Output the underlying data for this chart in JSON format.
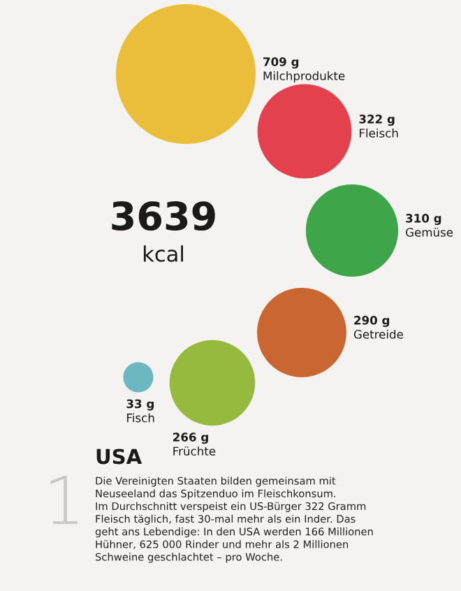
{
  "chart_data": {
    "type": "other",
    "title": "USA",
    "categories": [
      "Milchprodukte",
      "Fleisch",
      "Gemüse",
      "Getreide",
      "Früchte",
      "Fisch"
    ],
    "values": [
      709,
      322,
      310,
      290,
      266,
      33
    ],
    "value_labels": [
      "709 g",
      "322 g",
      "310 g",
      "290 g",
      "266 g",
      "33 g"
    ],
    "colors": [
      "#e8b92a",
      "#e0323f",
      "#2e9e3a",
      "#c55a22",
      "#8db52e",
      "#5fb3bd"
    ],
    "annotations": [
      "3639",
      "kcal",
      "1",
      "Die Vereinigten Staaten bilden gemeinsam mit\nNeuseeland das Spitzenduo im Fleischkonsum.\nIm Durchschnitt verspeist ein US-Bürger 322 Gramm\nFleisch täglich, fast 30-mal mehr als ein Inder. Das\ngeht ans Lebendige: In den USA werden 166 Millionen\nHühner, 625 000 Rinder und mehr als 2 Millionen\nSchweine geschlachtet – pro Woche."
    ]
  }
}
